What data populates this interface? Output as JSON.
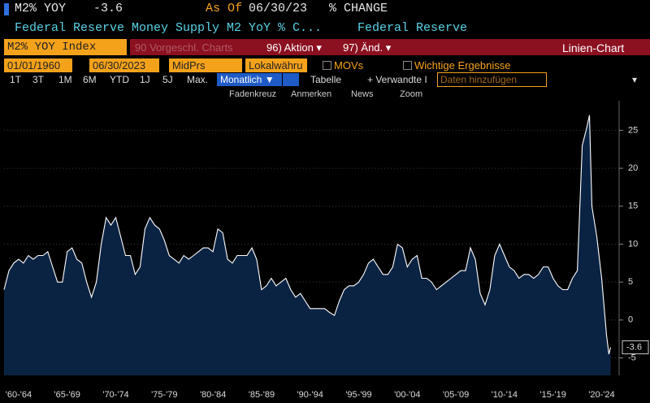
{
  "header": {
    "ticker": "M2% YOY",
    "value": -3.6,
    "as_of_label": "As Of",
    "as_of_date": "06/30/23",
    "mode": "% CHANGE",
    "description": "Federal Reserve Money Supply M2 YoY % C...",
    "source": "Federal Reserve"
  },
  "toolbar": {
    "security": "M2% YOY Index",
    "suggested": "90 Vorgeschl. Charts",
    "action": "96) Aktion ▾",
    "change": "97) Änd. ▾",
    "chart_type": "Linien-Chart"
  },
  "controls": {
    "start_date": "01/01/1960",
    "end_date": "06/30/2023",
    "price": "MidPrs",
    "currency": "Lokalwähru",
    "movs": "MOVs",
    "events": "Wichtige Ergebnisse"
  },
  "periods": [
    "1T",
    "3T",
    "1M",
    "6M",
    "YTD",
    "1J",
    "5J",
    "Max."
  ],
  "frequency": "Monatlich ▼",
  "table_button": "Tabelle",
  "related": "+ Verwandte I",
  "add_data": "Daten hinzufügen",
  "tools": [
    "Fadenkreuz",
    "Anmerken",
    "News",
    "Zoom"
  ],
  "chart_data": {
    "type": "area",
    "grid": true,
    "area_color": "#0b2343",
    "x": [
      1961,
      1961.5,
      1962,
      1962.5,
      1963,
      1963.5,
      1964,
      1964.5,
      1965,
      1965.5,
      1966,
      1966.5,
      1967,
      1967.5,
      1968,
      1968.5,
      1969,
      1969.5,
      1970,
      1970.5,
      1971,
      1971.5,
      1972,
      1972.5,
      1973,
      1973.5,
      1974,
      1974.5,
      1975,
      1975.5,
      1976,
      1976.5,
      1977,
      1977.5,
      1978,
      1978.5,
      1979,
      1979.5,
      1980,
      1980.5,
      1981,
      1981.5,
      1982,
      1982.5,
      1983,
      1983.5,
      1984,
      1984.5,
      1985,
      1985.5,
      1986,
      1986.5,
      1987,
      1987.5,
      1988,
      1988.5,
      1989,
      1989.5,
      1990,
      1990.5,
      1991,
      1991.5,
      1992,
      1992.5,
      1993,
      1993.5,
      1994,
      1994.5,
      1995,
      1995.5,
      1996,
      1996.5,
      1997,
      1997.5,
      1998,
      1998.5,
      1999,
      1999.5,
      2000,
      2000.5,
      2001,
      2001.5,
      2002,
      2002.5,
      2003,
      2003.5,
      2004,
      2004.5,
      2005,
      2005.5,
      2006,
      2006.5,
      2007,
      2007.5,
      2008,
      2008.5,
      2009,
      2009.5,
      2010,
      2010.5,
      2011,
      2011.5,
      2012,
      2012.5,
      2013,
      2013.5,
      2014,
      2014.5,
      2015,
      2015.5,
      2016,
      2016.5,
      2017,
      2017.5,
      2018,
      2018.5,
      2019,
      2019.5,
      2020,
      2020.5,
      2021,
      2021.25,
      2021.5,
      2022,
      2022.5,
      2023,
      2023.25,
      2023.42
    ],
    "series": [
      {
        "name": "M2% YOY",
        "color": "#ffffff",
        "values": [
          4,
          6.5,
          7.5,
          8,
          7.5,
          8.5,
          8,
          8.5,
          8.5,
          9,
          7,
          5,
          5,
          9,
          9.5,
          8,
          7.5,
          5,
          3,
          5,
          10,
          13.5,
          12.5,
          13.5,
          11,
          8.5,
          8.5,
          6,
          7,
          12,
          13.5,
          12.5,
          12,
          10.5,
          8.5,
          8,
          7.5,
          8.5,
          8,
          8.5,
          9,
          9.5,
          9.5,
          9,
          12,
          11.5,
          8,
          7.5,
          8.5,
          8.5,
          8.5,
          9.5,
          8,
          4,
          4.5,
          5.5,
          4.5,
          5,
          5.5,
          4,
          3,
          3.5,
          2.5,
          1.5,
          1.5,
          1.5,
          1.5,
          1,
          0.6,
          2.5,
          4,
          4.5,
          4.5,
          5,
          6,
          7.5,
          8,
          7,
          6,
          6,
          7,
          10,
          9.5,
          7,
          8,
          8.5,
          5.5,
          5.5,
          5,
          4,
          4.5,
          5,
          5.5,
          6,
          6.5,
          6.5,
          9.5,
          8,
          3.5,
          2,
          4,
          8.5,
          10,
          8.5,
          7,
          6.5,
          5.5,
          6,
          6,
          5.5,
          6,
          7,
          7,
          5.5,
          4.5,
          4,
          4,
          5.5,
          6.5,
          23,
          25.5,
          27,
          15,
          11,
          5.5,
          -2,
          -4.5,
          -3.6
        ]
      }
    ],
    "xlim": [
      1961,
      2024.3
    ],
    "ylim": [
      -7.3,
      28.9
    ],
    "xticks": [
      {
        "value": 1962.5,
        "label": "'60-'64"
      },
      {
        "value": 1967.5,
        "label": "'65-'69"
      },
      {
        "value": 1972.5,
        "label": "'70-'74"
      },
      {
        "value": 1977.5,
        "label": "'75-'79"
      },
      {
        "value": 1982.5,
        "label": "'80-'84"
      },
      {
        "value": 1987.5,
        "label": "'85-'89"
      },
      {
        "value": 1992.5,
        "label": "'90-'94"
      },
      {
        "value": 1997.5,
        "label": "'95-'99"
      },
      {
        "value": 2002.5,
        "label": "'00-'04"
      },
      {
        "value": 2007.5,
        "label": "'05-'09"
      },
      {
        "value": 2012.5,
        "label": "'10-'14"
      },
      {
        "value": 2017.5,
        "label": "'15-'19"
      },
      {
        "value": 2022.5,
        "label": "'20-'24"
      }
    ],
    "yticks": [
      -5,
      0,
      5,
      10,
      15,
      20,
      25
    ]
  }
}
